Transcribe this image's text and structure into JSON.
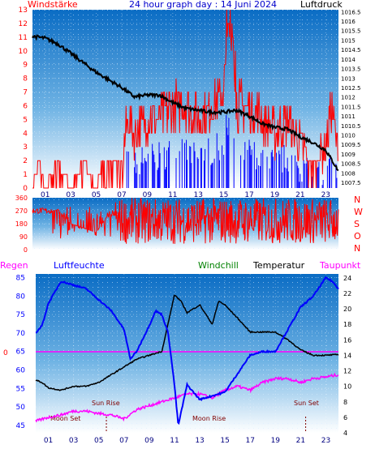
{
  "header": {
    "left_label": "Windstärke",
    "title": "24 hour graph day : 14 Juni 2024",
    "right_label": "Luftdruck"
  },
  "colors": {
    "wind": "#ff0000",
    "pressure": "#000000",
    "humidity": "#0000ff",
    "windchill": "#008000",
    "temperature": "#000000",
    "dewpoint": "#ff00ff",
    "rain": "#ff00ff",
    "sky_top": "#0a6cc4",
    "sky_bottom": "#ffffff"
  },
  "chart_data": [
    {
      "type": "line",
      "panel": "wind-pressure",
      "x_ticks": [
        "01",
        "03",
        "05",
        "07",
        "09",
        "11",
        "13",
        "15",
        "17",
        "19",
        "21",
        "23"
      ],
      "xlim": [
        0,
        24
      ],
      "y_left": {
        "label": "Windstärke",
        "ticks": [
          "0",
          "1",
          "2",
          "3",
          "4",
          "5",
          "6",
          "7",
          "8",
          "9",
          "10",
          "11",
          "12",
          "13"
        ],
        "ylim": [
          0,
          13
        ]
      },
      "y_right": {
        "label": "Luftdruck",
        "ticks": [
          "1007.5",
          "1008",
          "1008.5",
          "1009",
          "1009.5",
          "1010",
          "1010.5",
          "1011",
          "1011.5",
          "1012",
          "1012.5",
          "1013",
          "1013.5",
          "1014",
          "1014.5",
          "1015",
          "1015.5",
          "1016",
          "1016.5"
        ],
        "ylim": [
          1007.2,
          1016.6
        ]
      },
      "series": [
        {
          "name": "Windstärke",
          "x": [
            0,
            0.5,
            1,
            2,
            3,
            4,
            5,
            5.5,
            6,
            6.5,
            7,
            7.5,
            8,
            9,
            10,
            11,
            12,
            13,
            14,
            15,
            15.5,
            16,
            17,
            18,
            19,
            20,
            21,
            22,
            23,
            23.5,
            24
          ],
          "values": [
            0,
            2,
            0,
            2,
            0,
            2,
            0,
            2,
            2,
            2,
            2,
            5,
            4,
            5,
            5,
            6,
            6,
            5,
            6,
            7,
            13,
            6,
            6,
            5,
            4,
            5,
            3,
            2,
            3,
            6,
            2
          ]
        },
        {
          "name": "Luftdruck",
          "x": [
            0,
            1,
            2,
            3,
            4,
            5,
            6,
            7,
            8,
            9,
            10,
            11,
            12,
            13,
            14,
            15,
            16,
            17,
            18,
            19,
            20,
            21,
            22,
            23,
            24
          ],
          "values": [
            1015.2,
            1015.1,
            1014.8,
            1014.3,
            1013.8,
            1013.3,
            1012.9,
            1012.5,
            1012.0,
            1012.1,
            1012.1,
            1011.7,
            1011.4,
            1011.3,
            1011.2,
            1011.2,
            1011.3,
            1011.0,
            1010.6,
            1010.4,
            1010.3,
            1009.9,
            1009.6,
            1009.2,
            1008.1
          ]
        }
      ],
      "grid": true
    },
    {
      "type": "line",
      "panel": "wind-direction",
      "x_ticks": [
        "01",
        "03",
        "05",
        "07",
        "09",
        "11",
        "13",
        "15",
        "17",
        "19",
        "21",
        "23"
      ],
      "xlim": [
        0,
        24
      ],
      "y_left": {
        "ticks": [
          "0",
          "90",
          "180",
          "270",
          "360"
        ],
        "ylim": [
          0,
          360
        ]
      },
      "y_right": {
        "ticks": [
          "N",
          "W",
          "S",
          "O",
          "N"
        ]
      },
      "series": [
        {
          "name": "Windrichtung",
          "x": [
            0,
            1,
            2,
            3,
            4,
            5,
            6,
            7,
            8,
            9,
            10,
            11,
            12,
            13,
            14,
            15,
            16,
            17,
            18,
            19,
            20,
            21,
            22,
            23,
            24
          ],
          "values": [
            280,
            230,
            280,
            180,
            150,
            120,
            250,
            220,
            300,
            200,
            250,
            260,
            260,
            230,
            260,
            240,
            280,
            260,
            260,
            240,
            250,
            220,
            200,
            210,
            230
          ]
        }
      ],
      "grid": true
    },
    {
      "type": "line",
      "panel": "humidity-temperature",
      "x_ticks": [
        "01",
        "03",
        "05",
        "07",
        "09",
        "11",
        "13",
        "15",
        "17",
        "19",
        "21",
        "23"
      ],
      "xlim": [
        0,
        24
      ],
      "y_left": {
        "label": "Luftfeuchte",
        "ticks": [
          "45",
          "50",
          "55",
          "60",
          "65",
          "70",
          "75",
          "80",
          "85"
        ],
        "ylim": [
          43,
          86
        ]
      },
      "y_right": {
        "label": "Temperatur",
        "ticks": [
          "4",
          "6",
          "8",
          "10",
          "12",
          "14",
          "16",
          "18",
          "20",
          "22",
          "24"
        ],
        "ylim": [
          4,
          24.5
        ]
      },
      "rain_axis": {
        "label": "Regen",
        "ticks": [
          "0"
        ]
      },
      "series": [
        {
          "name": "Luftfeuchte",
          "x": [
            0,
            0.5,
            1,
            2,
            3,
            4,
            5,
            6,
            7,
            7.5,
            8,
            9,
            9.5,
            10,
            10.5,
            11,
            11.3,
            12,
            13,
            14,
            15,
            16,
            17,
            18,
            19,
            20,
            21,
            22,
            23,
            23.5,
            24
          ],
          "values": [
            70,
            72,
            78,
            84,
            83,
            82,
            79,
            76,
            71,
            63,
            65,
            72,
            76,
            75,
            70,
            56,
            45,
            56,
            52,
            53,
            54,
            59,
            64,
            65,
            65,
            71,
            77,
            80,
            85,
            84,
            82
          ]
        },
        {
          "name": "Temperatur",
          "x": [
            0,
            0.5,
            1,
            2,
            3,
            4,
            5,
            6,
            7,
            8,
            9,
            10,
            11,
            11.5,
            12,
            13,
            14,
            14.5,
            15,
            16,
            17,
            18,
            19,
            20,
            21,
            22,
            23,
            24
          ],
          "values": [
            10.8,
            10.5,
            9.8,
            9.5,
            10,
            10,
            10.5,
            11.5,
            12.5,
            13.5,
            14,
            14.5,
            21.8,
            21,
            19.5,
            20.5,
            18,
            21,
            20.5,
            18.8,
            17,
            17,
            17,
            16,
            14.7,
            14,
            14,
            14.1
          ]
        },
        {
          "name": "Taupunkt",
          "x": [
            0,
            1,
            2,
            3,
            4,
            5,
            6,
            7,
            8,
            9,
            10,
            11,
            12,
            13,
            14,
            15,
            16,
            17,
            18,
            19,
            20,
            21,
            22,
            23,
            24
          ],
          "values": [
            5.5,
            6,
            6.3,
            6.8,
            6.8,
            6.5,
            6.3,
            5.8,
            7,
            7.5,
            8,
            8.5,
            9,
            9,
            8.5,
            9.5,
            10,
            9.5,
            10.5,
            11,
            11,
            10.5,
            11,
            11.2,
            11.5
          ]
        }
      ],
      "annotations": [
        "Moon Set",
        "Sun Rise",
        "Moon Rise",
        "Sun Set"
      ],
      "grid": true
    }
  ],
  "bottom": {
    "labels": {
      "rain": "Regen",
      "humidity": "Luftfeuchte",
      "windchill": "Windchill",
      "temperature": "Temperatur",
      "dewpoint": "Taupunkt"
    }
  }
}
